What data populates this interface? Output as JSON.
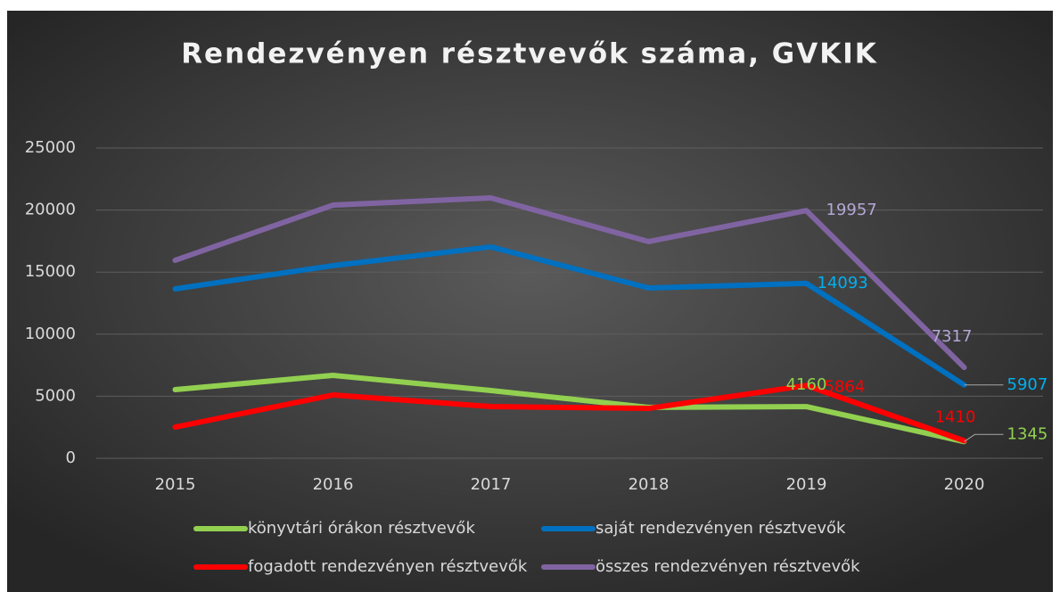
{
  "chart_data": {
    "type": "line",
    "title": "Rendezvényen résztvevők száma, GVKIK",
    "categories": [
      "2015",
      "2016",
      "2017",
      "2018",
      "2019",
      "2020"
    ],
    "series": [
      {
        "name": "könyvtári órákon résztvevők",
        "color": "#92d050",
        "label_color": "#92d050",
        "values": [
          5530,
          6680,
          5460,
          4100,
          4160,
          1345
        ]
      },
      {
        "name": "saját rendezvényen résztvevők",
        "color": "#0070c0",
        "label_color": "#00b0f0",
        "values": [
          13650,
          15520,
          17030,
          13720,
          14093,
          5907
        ]
      },
      {
        "name": "fogadott rendezvényen résztvevők",
        "color": "#ff0000",
        "label_color": "#ff0000",
        "values": [
          2510,
          5100,
          4170,
          4020,
          5864,
          1410
        ]
      },
      {
        "name": "összes rendezvényen résztvevők",
        "color": "#8064a2",
        "label_color": "#b4a7d6",
        "values": [
          15950,
          20400,
          20980,
          17460,
          19957,
          7317
        ]
      }
    ],
    "data_labels": [
      4,
      5
    ],
    "ylim": [
      0,
      25000
    ],
    "yticks": [
      0,
      5000,
      10000,
      15000,
      20000,
      25000
    ],
    "grid": true
  }
}
